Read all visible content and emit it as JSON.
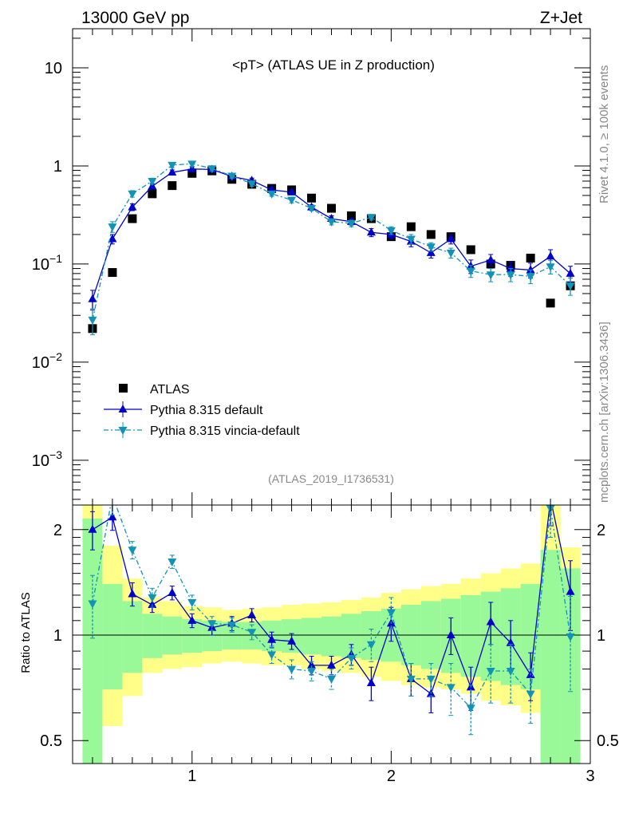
{
  "header": {
    "left": "13000 GeV pp",
    "right": "Z+Jet"
  },
  "side_text": {
    "rivet": "Rivet 4.1.0, ≥ 100k events",
    "mcplots": "mcplots.cern.ch [arXiv:1306.3436]"
  },
  "chart_data": [
    {
      "type": "scatter",
      "title": "<pT> (ATLAS UE in Z production)",
      "watermark": "(ATLAS_2019_I1736531)",
      "yscale": "log",
      "xlim": [
        0.4,
        3.0
      ],
      "ylim": [
        0.00035,
        25
      ],
      "x_ticks": [
        "1",
        "2",
        "3"
      ],
      "y_ticks": [
        "10^-3",
        "10^-2",
        "10^-1",
        "1",
        "10"
      ],
      "x": [
        0.5,
        0.6,
        0.7,
        0.8,
        0.9,
        1.0,
        1.1,
        1.2,
        1.3,
        1.4,
        1.5,
        1.6,
        1.7,
        1.8,
        1.9,
        2.0,
        2.1,
        2.2,
        2.3,
        2.4,
        2.5,
        2.6,
        2.7,
        2.8,
        2.9
      ],
      "legend": [
        {
          "key": "atlas",
          "label": "ATLAS"
        },
        {
          "key": "pythia",
          "label": "Pythia 8.315 default"
        },
        {
          "key": "vincia",
          "label": "Pythia 8.315 vincia-default"
        }
      ],
      "series": [
        {
          "key": "atlas",
          "name": "ATLAS",
          "color": "#000000",
          "values": [
            0.022,
            0.082,
            0.29,
            0.52,
            0.63,
            0.84,
            0.89,
            0.73,
            0.65,
            0.59,
            0.57,
            0.47,
            0.37,
            0.31,
            0.29,
            0.19,
            0.24,
            0.2,
            0.19,
            0.14,
            0.1,
            0.097,
            0.115,
            0.04,
            0.06
          ]
        },
        {
          "key": "pythia",
          "name": "Pythia 8.315 default",
          "color": "#0000cc",
          "values": [
            0.044,
            0.18,
            0.38,
            0.62,
            0.86,
            0.93,
            0.92,
            0.78,
            0.71,
            0.57,
            0.54,
            0.38,
            0.29,
            0.27,
            0.21,
            0.2,
            0.17,
            0.13,
            0.18,
            0.095,
            0.11,
            0.09,
            0.087,
            0.12,
            0.08
          ],
          "errors": [
            0.01,
            0.02,
            0.03,
            0.04,
            0.05,
            0.05,
            0.05,
            0.04,
            0.04,
            0.03,
            0.03,
            0.02,
            0.02,
            0.02,
            0.02,
            0.02,
            0.02,
            0.015,
            0.02,
            0.015,
            0.015,
            0.015,
            0.015,
            0.02,
            0.015
          ]
        },
        {
          "key": "vincia",
          "name": "Pythia 8.315 vincia-default",
          "color": "#1193b8",
          "values": [
            0.027,
            0.24,
            0.52,
            0.7,
            1.02,
            1.05,
            0.94,
            0.79,
            0.66,
            0.52,
            0.45,
            0.37,
            0.27,
            0.26,
            0.3,
            0.22,
            0.18,
            0.15,
            0.13,
            0.085,
            0.078,
            0.078,
            0.075,
            0.094,
            0.06
          ],
          "errors": [
            0.008,
            0.03,
            0.04,
            0.05,
            0.06,
            0.06,
            0.05,
            0.04,
            0.04,
            0.03,
            0.03,
            0.02,
            0.02,
            0.02,
            0.02,
            0.02,
            0.02,
            0.015,
            0.015,
            0.012,
            0.012,
            0.012,
            0.012,
            0.015,
            0.012
          ]
        }
      ]
    },
    {
      "type": "scatter",
      "ylabel": "Ratio to ATLAS",
      "yscale": "log",
      "xlim": [
        0.4,
        3.0
      ],
      "ylim": [
        0.43,
        2.35
      ],
      "x_ticks": [
        "1",
        "2",
        "3"
      ],
      "y_ticks": [
        "0.5",
        "1",
        "2"
      ],
      "x": [
        0.5,
        0.6,
        0.7,
        0.8,
        0.9,
        1.0,
        1.1,
        1.2,
        1.3,
        1.4,
        1.5,
        1.6,
        1.7,
        1.8,
        1.9,
        2.0,
        2.1,
        2.2,
        2.3,
        2.4,
        2.5,
        2.6,
        2.7,
        2.8,
        2.9
      ],
      "band_edges": [
        0.45,
        0.55,
        0.65,
        0.75,
        0.85,
        0.95,
        1.05,
        1.15,
        1.25,
        1.35,
        1.45,
        1.55,
        1.65,
        1.75,
        1.85,
        1.95,
        2.05,
        2.15,
        2.25,
        2.35,
        2.45,
        2.55,
        2.65,
        2.75,
        2.85,
        2.95
      ],
      "bands": {
        "yellow_low": [
          0.3,
          0.55,
          0.67,
          0.78,
          0.8,
          0.81,
          0.83,
          0.84,
          0.83,
          0.82,
          0.82,
          0.8,
          0.79,
          0.78,
          0.76,
          0.74,
          0.72,
          0.71,
          0.7,
          0.68,
          0.65,
          0.63,
          0.6,
          0.35,
          0.33
        ],
        "yellow_high": [
          3.3,
          1.8,
          1.45,
          1.28,
          1.25,
          1.21,
          1.2,
          1.18,
          1.19,
          1.2,
          1.22,
          1.23,
          1.24,
          1.26,
          1.28,
          1.32,
          1.35,
          1.38,
          1.4,
          1.45,
          1.5,
          1.55,
          1.6,
          2.5,
          1.78
        ],
        "green_low": [
          0.38,
          0.7,
          0.78,
          0.86,
          0.88,
          0.89,
          0.9,
          0.91,
          0.91,
          0.9,
          0.89,
          0.88,
          0.87,
          0.86,
          0.85,
          0.84,
          0.82,
          0.8,
          0.78,
          0.76,
          0.74,
          0.72,
          0.7,
          0.4,
          0.38
        ],
        "green_high": [
          2.15,
          1.4,
          1.25,
          1.15,
          1.13,
          1.11,
          1.1,
          1.09,
          1.09,
          1.1,
          1.11,
          1.12,
          1.13,
          1.15,
          1.17,
          1.19,
          1.22,
          1.25,
          1.27,
          1.3,
          1.33,
          1.36,
          1.4,
          1.75,
          1.55
        ]
      },
      "reference": 1.0,
      "series": [
        {
          "key": "pythia",
          "name": "Pythia 8.315 default",
          "color": "#0000cc",
          "values": [
            2.0,
            2.17,
            1.31,
            1.22,
            1.32,
            1.1,
            1.05,
            1.08,
            1.14,
            0.97,
            0.96,
            0.82,
            0.82,
            0.88,
            0.73,
            1.08,
            0.75,
            0.68,
            1.0,
            0.71,
            1.09,
            0.95,
            0.77,
            2.45,
            1.33
          ],
          "errors": [
            0.25,
            0.18,
            0.1,
            0.06,
            0.06,
            0.05,
            0.05,
            0.05,
            0.05,
            0.05,
            0.05,
            0.05,
            0.05,
            0.06,
            0.08,
            0.12,
            0.08,
            0.08,
            0.12,
            0.1,
            0.15,
            0.15,
            0.12,
            0.4,
            0.3
          ]
        },
        {
          "key": "vincia",
          "name": "Pythia 8.315 vincia-default",
          "color": "#1193b8",
          "values": [
            1.23,
            2.5,
            1.75,
            1.28,
            1.62,
            1.24,
            1.08,
            1.07,
            1.02,
            0.88,
            0.8,
            0.79,
            0.75,
            0.86,
            0.94,
            1.16,
            0.75,
            0.75,
            0.71,
            0.62,
            0.79,
            0.79,
            0.68,
            2.3,
            0.99
          ],
          "errors": [
            0.25,
            0.3,
            0.1,
            0.08,
            0.07,
            0.06,
            0.05,
            0.05,
            0.05,
            0.05,
            0.05,
            0.05,
            0.05,
            0.06,
            0.1,
            0.12,
            0.08,
            0.08,
            0.12,
            0.1,
            0.15,
            0.15,
            0.12,
            0.4,
            0.3
          ]
        }
      ]
    }
  ]
}
